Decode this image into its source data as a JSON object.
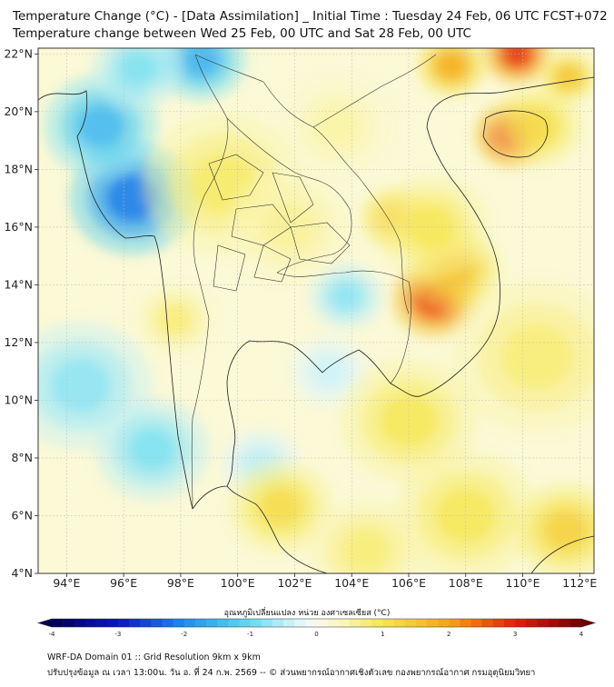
{
  "header": {
    "title_line1": "Temperature Change (°C) - [Data Assimilation] _ Initial Time : Tuesday 24 Feb, 06 UTC FCST+072",
    "title_line2": "Temperature change between Wed 25 Feb, 00 UTC and Sat 28 Feb, 00 UTC"
  },
  "map": {
    "lat_labels": [
      "22°N",
      "20°N",
      "18°N",
      "16°N",
      "14°N",
      "12°N",
      "10°N",
      "8°N",
      "6°N",
      "4°N"
    ],
    "lon_labels": [
      "94°E",
      "96°E",
      "98°E",
      "100°E",
      "102°E",
      "104°E",
      "106°E",
      "108°E",
      "110°E",
      "112°E"
    ],
    "lon_range": [
      93,
      112.5
    ],
    "lat_range": [
      4,
      22.2
    ],
    "blobs": [
      {
        "lon": 96.3,
        "lat": 17.0,
        "r": 2.2,
        "v": -2.2
      },
      {
        "lon": 95.2,
        "lat": 19.5,
        "r": 2.0,
        "v": -1.5
      },
      {
        "lon": 98.7,
        "lat": 21.8,
        "r": 1.6,
        "v": -1.6
      },
      {
        "lon": 96.5,
        "lat": 21.5,
        "r": 1.6,
        "v": -0.9
      },
      {
        "lon": 94.5,
        "lat": 10.5,
        "r": 2.5,
        "v": -0.8
      },
      {
        "lon": 97.0,
        "lat": 8.3,
        "r": 2.0,
        "v": -0.9
      },
      {
        "lon": 103.8,
        "lat": 13.6,
        "r": 1.3,
        "v": -0.8
      },
      {
        "lon": 103.2,
        "lat": 11.0,
        "r": 1.4,
        "v": -0.4
      },
      {
        "lon": 100.8,
        "lat": 7.8,
        "r": 1.4,
        "v": -0.5
      },
      {
        "lon": 106.9,
        "lat": 13.5,
        "r": 1.5,
        "v": 2.9
      },
      {
        "lon": 107.6,
        "lat": 14.5,
        "r": 1.6,
        "v": 1.6
      },
      {
        "lon": 105.5,
        "lat": 16.3,
        "r": 1.2,
        "v": 1.6
      },
      {
        "lon": 106.8,
        "lat": 16.0,
        "r": 2.0,
        "v": 1.0
      },
      {
        "lon": 109.6,
        "lat": 19.2,
        "r": 1.3,
        "v": 3.0
      },
      {
        "lon": 110.5,
        "lat": 19.5,
        "r": 1.6,
        "v": 1.2
      },
      {
        "lon": 109.8,
        "lat": 22.0,
        "r": 1.2,
        "v": 3.0
      },
      {
        "lon": 107.5,
        "lat": 21.6,
        "r": 1.2,
        "v": 2.0
      },
      {
        "lon": 111.6,
        "lat": 21.2,
        "r": 1.0,
        "v": 1.6
      },
      {
        "lon": 99.5,
        "lat": 17.5,
        "r": 2.8,
        "v": 0.9
      },
      {
        "lon": 101.8,
        "lat": 16.0,
        "r": 2.2,
        "v": 0.6
      },
      {
        "lon": 101.5,
        "lat": 6.3,
        "r": 1.8,
        "v": 1.2
      },
      {
        "lon": 108.0,
        "lat": 6.0,
        "r": 2.5,
        "v": 1.0
      },
      {
        "lon": 111.5,
        "lat": 5.5,
        "r": 1.8,
        "v": 1.4
      },
      {
        "lon": 106.0,
        "lat": 9.3,
        "r": 2.4,
        "v": 1.0
      },
      {
        "lon": 110.5,
        "lat": 11.5,
        "r": 3.0,
        "v": 0.8
      },
      {
        "lon": 97.8,
        "lat": 12.8,
        "r": 1.3,
        "v": 0.8
      },
      {
        "lon": 103.5,
        "lat": 19.5,
        "r": 2.0,
        "v": 0.5
      },
      {
        "lon": 104.5,
        "lat": 4.8,
        "r": 2.0,
        "v": 0.8
      }
    ]
  },
  "colorbar": {
    "title": "อุณหภูมิเปลี่ยนแปลง หน่วย องศาเซลเซียส (°C)",
    "tick_labels": [
      "-4",
      "-3",
      "-2",
      "-1",
      "0",
      "1",
      "2",
      "3",
      "4"
    ],
    "range": [
      -4,
      4
    ]
  },
  "footer": {
    "line1": "WRF-DA Domain 01 :: Grid Resolution 9km x 9km",
    "line2": "ปรับปรุงข้อมูล ณ เวลา 13:00น. วัน อ. ที่ 24 ก.พ. 2569 -- © ส่วนพยากรณ์อากาศเชิงตัวเลข กองพยากรณ์อากาศ กรมอุตุนิยมวิทยา"
  }
}
